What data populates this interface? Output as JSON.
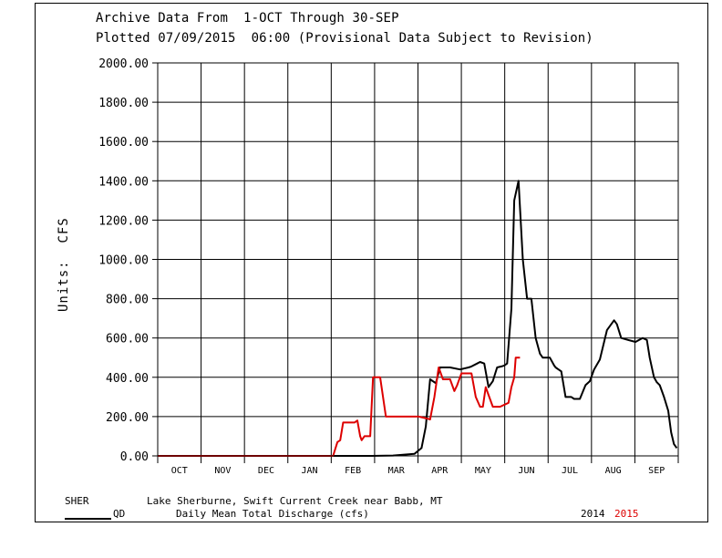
{
  "chart_data": {
    "type": "line",
    "title": "Archive Data From  1-OCT Through 30-SEP",
    "subtitle": "Plotted 07/09/2015  06:00 (Provisional Data Subject to Revision)",
    "ylabel": "Units:  CFS",
    "ylim": [
      0,
      2000
    ],
    "yticks": [
      "0.00",
      "200.00",
      "400.00",
      "600.00",
      "800.00",
      "1000.00",
      "1200.00",
      "1400.00",
      "1600.00",
      "1800.00",
      "2000.00"
    ],
    "categories": [
      "OCT",
      "NOV",
      "DEC",
      "JAN",
      "FEB",
      "MAR",
      "APR",
      "MAY",
      "JUN",
      "JUL",
      "AUG",
      "SEP"
    ],
    "grid": true,
    "series": [
      {
        "name": "2014",
        "color": "#000000",
        "x": [
          0,
          150,
          165,
          180,
          185,
          188,
          191,
          195,
          198,
          200,
          205,
          212,
          218,
          220,
          224,
          226,
          229,
          232,
          235,
          238,
          241,
          243,
          245,
          248,
          250,
          253,
          256,
          259,
          262,
          265,
          268,
          270,
          272,
          275,
          278,
          279,
          281,
          283,
          286,
          290,
          292,
          296,
          300,
          303,
          306,
          310,
          315,
          320,
          322,
          325,
          330,
          335,
          340,
          343,
          345,
          348,
          350,
          352,
          355,
          358,
          360,
          362,
          364
        ],
        "values": [
          0,
          0,
          2,
          10,
          40,
          150,
          390,
          370,
          450,
          450,
          450,
          440,
          450,
          455,
          470,
          478,
          470,
          350,
          380,
          450,
          455,
          460,
          470,
          750,
          1300,
          1400,
          1000,
          800,
          800,
          600,
          520,
          500,
          500,
          500,
          460,
          450,
          440,
          430,
          300,
          300,
          290,
          290,
          360,
          380,
          440,
          490,
          640,
          690,
          670,
          600,
          590,
          580,
          600,
          590,
          500,
          400,
          375,
          360,
          300,
          230,
          120,
          60,
          40
        ]
      },
      {
        "name": "2015",
        "color": "#dd0000",
        "x": [
          0,
          123,
          126,
          128,
          130,
          134,
          138,
          140,
          142,
          143,
          145,
          149,
          151,
          153,
          156,
          160,
          183,
          189,
          191,
          194,
          197,
          200,
          205,
          208,
          210,
          212,
          213,
          215,
          218,
          220,
          223,
          226,
          228,
          230,
          235,
          239,
          240,
          246,
          248,
          250,
          251,
          254
        ],
        "values": [
          0,
          0,
          70,
          80,
          170,
          170,
          170,
          180,
          100,
          80,
          100,
          100,
          400,
          400,
          400,
          200,
          200,
          190,
          185,
          300,
          450,
          390,
          390,
          330,
          360,
          400,
          420,
          420,
          420,
          420,
          300,
          250,
          250,
          350,
          250,
          250,
          250,
          270,
          350,
          400,
          500,
          500
        ]
      }
    ],
    "station_code": "SHER",
    "station_name": "Lake Sherburne, Swift Current Creek near Babb, MT",
    "param_code": "QD",
    "param_desc": "Daily Mean Total Discharge (cfs)",
    "legend_year_1": "2014",
    "legend_year_2": "2015"
  }
}
